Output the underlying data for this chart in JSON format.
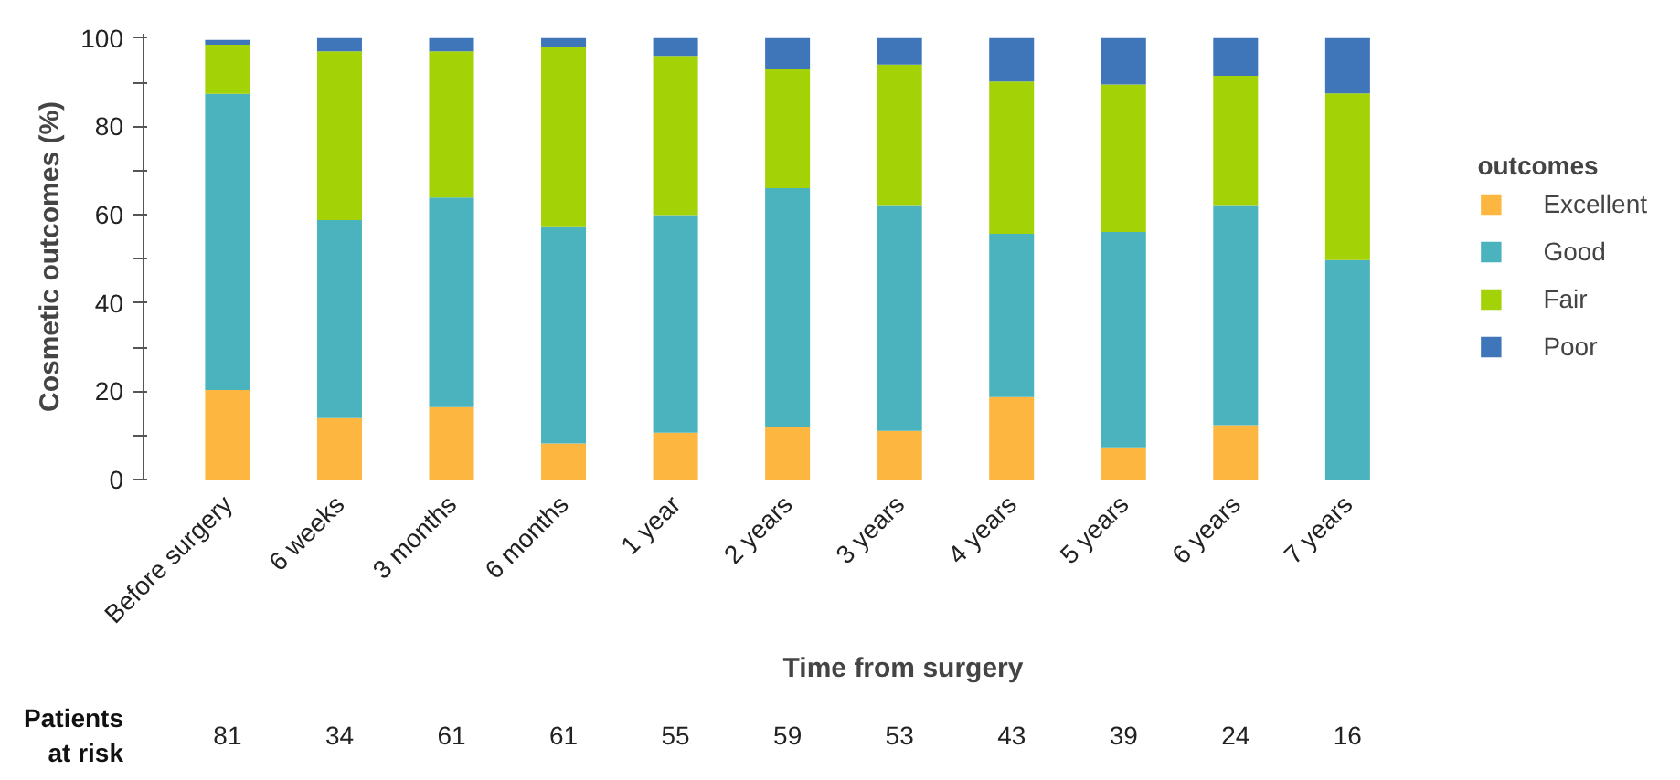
{
  "chart_data": {
    "type": "bar",
    "stacked": true,
    "xlabel": "Time from surgery",
    "ylabel": "Cosmetic outcomes (%)",
    "legend_title": "outcomes",
    "legend": "right",
    "grid": false,
    "categories": [
      "Before surgery",
      "6 weeks",
      "3 months",
      "6 months",
      "1 year",
      "2 years",
      "3 years",
      "4 years",
      "5 years",
      "6 years",
      "7 years"
    ],
    "series": [
      {
        "name": "Excellent",
        "color": "#fdb63f",
        "values": [
          20.3,
          13.9,
          16.4,
          8.2,
          10.6,
          11.8,
          11.0,
          18.7,
          7.3,
          12.3,
          0
        ]
      },
      {
        "name": "Good",
        "color": "#4ab3be",
        "values": [
          67.1,
          44.9,
          47.5,
          49.2,
          49.3,
          54.2,
          51.2,
          37.0,
          48.8,
          49.9,
          49.7
        ]
      },
      {
        "name": "Fair",
        "color": "#a3d206",
        "values": [
          11.1,
          38.2,
          33.1,
          40.6,
          36.1,
          27.1,
          31.8,
          34.5,
          33.4,
          29.3,
          37.8
        ]
      },
      {
        "name": "Poor",
        "color": "#3f75b9",
        "values": [
          1.1,
          3.0,
          3.0,
          2.0,
          4.0,
          6.9,
          6.0,
          9.8,
          10.5,
          8.5,
          12.5
        ]
      }
    ],
    "ylim": [
      0,
      101
    ],
    "yticks": [
      0,
      {
        "value": 10,
        "label": null
      },
      20,
      {
        "value": 30,
        "label": null
      },
      40,
      {
        "value": 50,
        "label": null
      },
      60,
      {
        "value": 70,
        "label": null
      },
      80,
      {
        "value": 90,
        "label": null
      },
      100
    ],
    "annotations": [
      "Patients\nat risk",
      "81",
      "34",
      "61",
      "61",
      "55",
      "59",
      "53",
      "43",
      "39",
      "24",
      "16"
    ]
  }
}
